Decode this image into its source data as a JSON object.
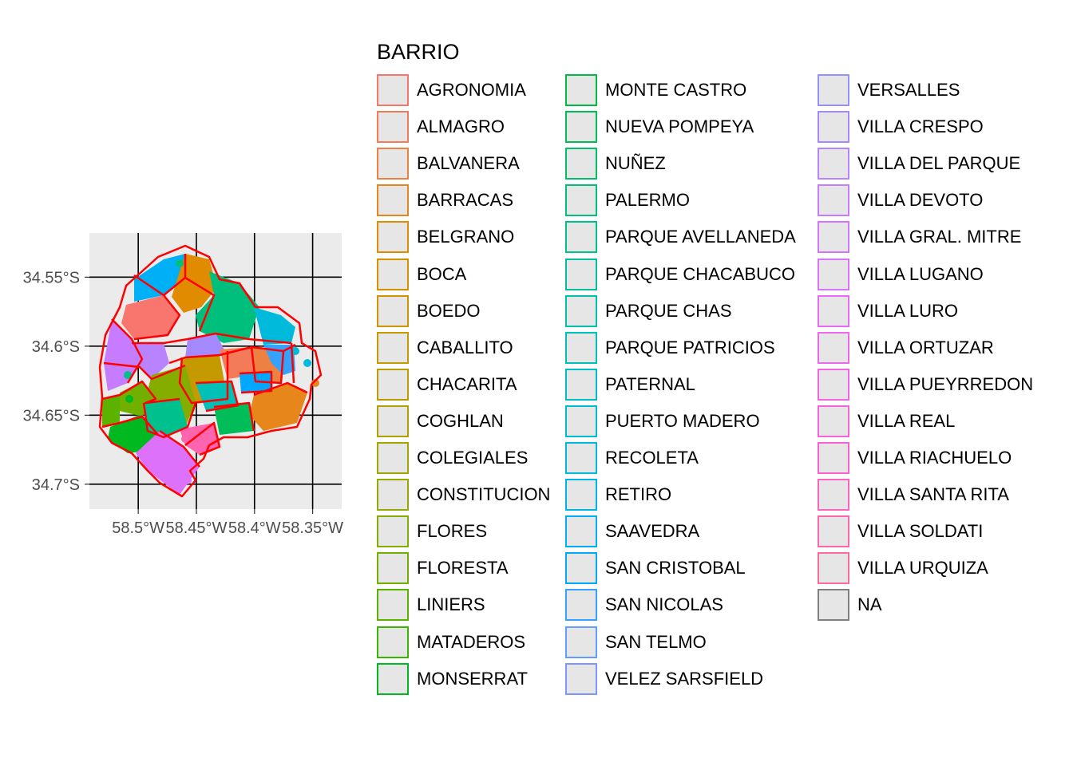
{
  "chart_data": {
    "type": "map",
    "axes": {
      "y_ticks": [
        "34.55°S",
        "34.6°S",
        "34.65°S",
        "34.7°S"
      ],
      "x_ticks": [
        "58.5°W",
        "58.45°W",
        "58.4°W",
        "58.35°W"
      ],
      "y_values": [
        -34.55,
        -34.6,
        -34.65,
        -34.7
      ],
      "x_values": [
        -58.5,
        -58.45,
        -58.4,
        -58.35
      ],
      "xlim": [
        -58.542,
        -58.325
      ],
      "ylim": [
        -34.718,
        -34.518
      ],
      "grid": true
    },
    "boundary_color": "#ff0000",
    "panel_background": "#ebebeb",
    "legend": {
      "title": "BARRIO",
      "position": "right",
      "entries": [
        {
          "label": "AGRONOMIA",
          "color": "#F8766D"
        },
        {
          "label": "ALMAGRO",
          "color": "#F37B59"
        },
        {
          "label": "BALVANERA",
          "color": "#ED8141"
        },
        {
          "label": "BARRACAS",
          "color": "#E7861B"
        },
        {
          "label": "BELGRANO",
          "color": "#E08B00"
        },
        {
          "label": "BOCA",
          "color": "#D89000"
        },
        {
          "label": "BOEDO",
          "color": "#CF9400"
        },
        {
          "label": "CABALLITO",
          "color": "#C59900"
        },
        {
          "label": "CHACARITA",
          "color": "#BB9D00"
        },
        {
          "label": "COGHLAN",
          "color": "#AFA100"
        },
        {
          "label": "COLEGIALES",
          "color": "#A3A500"
        },
        {
          "label": "CONSTITUCION",
          "color": "#95A900"
        },
        {
          "label": "FLORES",
          "color": "#85AD00"
        },
        {
          "label": "FLORESTA",
          "color": "#72B000"
        },
        {
          "label": "LINIERS",
          "color": "#5BB300"
        },
        {
          "label": "MATADEROS",
          "color": "#39B600"
        },
        {
          "label": "MONSERRAT",
          "color": "#00B81F"
        },
        {
          "label": "MONTE CASTRO",
          "color": "#00BA42"
        },
        {
          "label": "NUEVA POMPEYA",
          "color": "#00BC59"
        },
        {
          "label": "NUÑEZ",
          "color": "#00BE6C"
        },
        {
          "label": "PALERMO",
          "color": "#00BF7D"
        },
        {
          "label": "PARQUE AVELLANEDA",
          "color": "#00C08D"
        },
        {
          "label": "PARQUE CHACABUCO",
          "color": "#00C19C"
        },
        {
          "label": "PARQUE CHAS",
          "color": "#00C1AA"
        },
        {
          "label": "PARQUE PATRICIOS",
          "color": "#00C0B8"
        },
        {
          "label": "PATERNAL",
          "color": "#00BFC4"
        },
        {
          "label": "PUERTO MADERO",
          "color": "#00BDD0"
        },
        {
          "label": "RECOLETA",
          "color": "#00BADB"
        },
        {
          "label": "RETIRO",
          "color": "#00B6E5"
        },
        {
          "label": "SAAVEDRA",
          "color": "#00B0F6"
        },
        {
          "label": "SAN CRISTOBAL",
          "color": "#00A9FF"
        },
        {
          "label": "SAN NICOLAS",
          "color": "#35A2FF"
        },
        {
          "label": "SAN TELMO",
          "color": "#619CFF"
        },
        {
          "label": "VELEZ SARSFIELD",
          "color": "#7F96FF"
        },
        {
          "label": "VERSALLES",
          "color": "#9590FF"
        },
        {
          "label": "VILLA CRESPO",
          "color": "#A58AFF"
        },
        {
          "label": "VILLA DEL PARQUE",
          "color": "#B983FF"
        },
        {
          "label": "VILLA DEVOTO",
          "color": "#C77CFF"
        },
        {
          "label": "VILLA GRAL. MITRE",
          "color": "#D376FF"
        },
        {
          "label": "VILLA LUGANO",
          "color": "#DE71F9"
        },
        {
          "label": "VILLA LURO",
          "color": "#E76BF3"
        },
        {
          "label": "VILLA ORTUZAR",
          "color": "#EF67EB"
        },
        {
          "label": "VILLA PUEYRREDON",
          "color": "#F564E3"
        },
        {
          "label": "VILLA REAL",
          "color": "#FA62DB"
        },
        {
          "label": "VILLA RIACHUELO",
          "color": "#FD61D1"
        },
        {
          "label": "VILLA SANTA RITA",
          "color": "#FF62BC"
        },
        {
          "label": "VILLA SOLDATI",
          "color": "#FF65AE"
        },
        {
          "label": "VILLA URQUIZA",
          "color": "#FF6A98"
        },
        {
          "label": "NA",
          "color": "#7F7F7F"
        }
      ]
    }
  }
}
